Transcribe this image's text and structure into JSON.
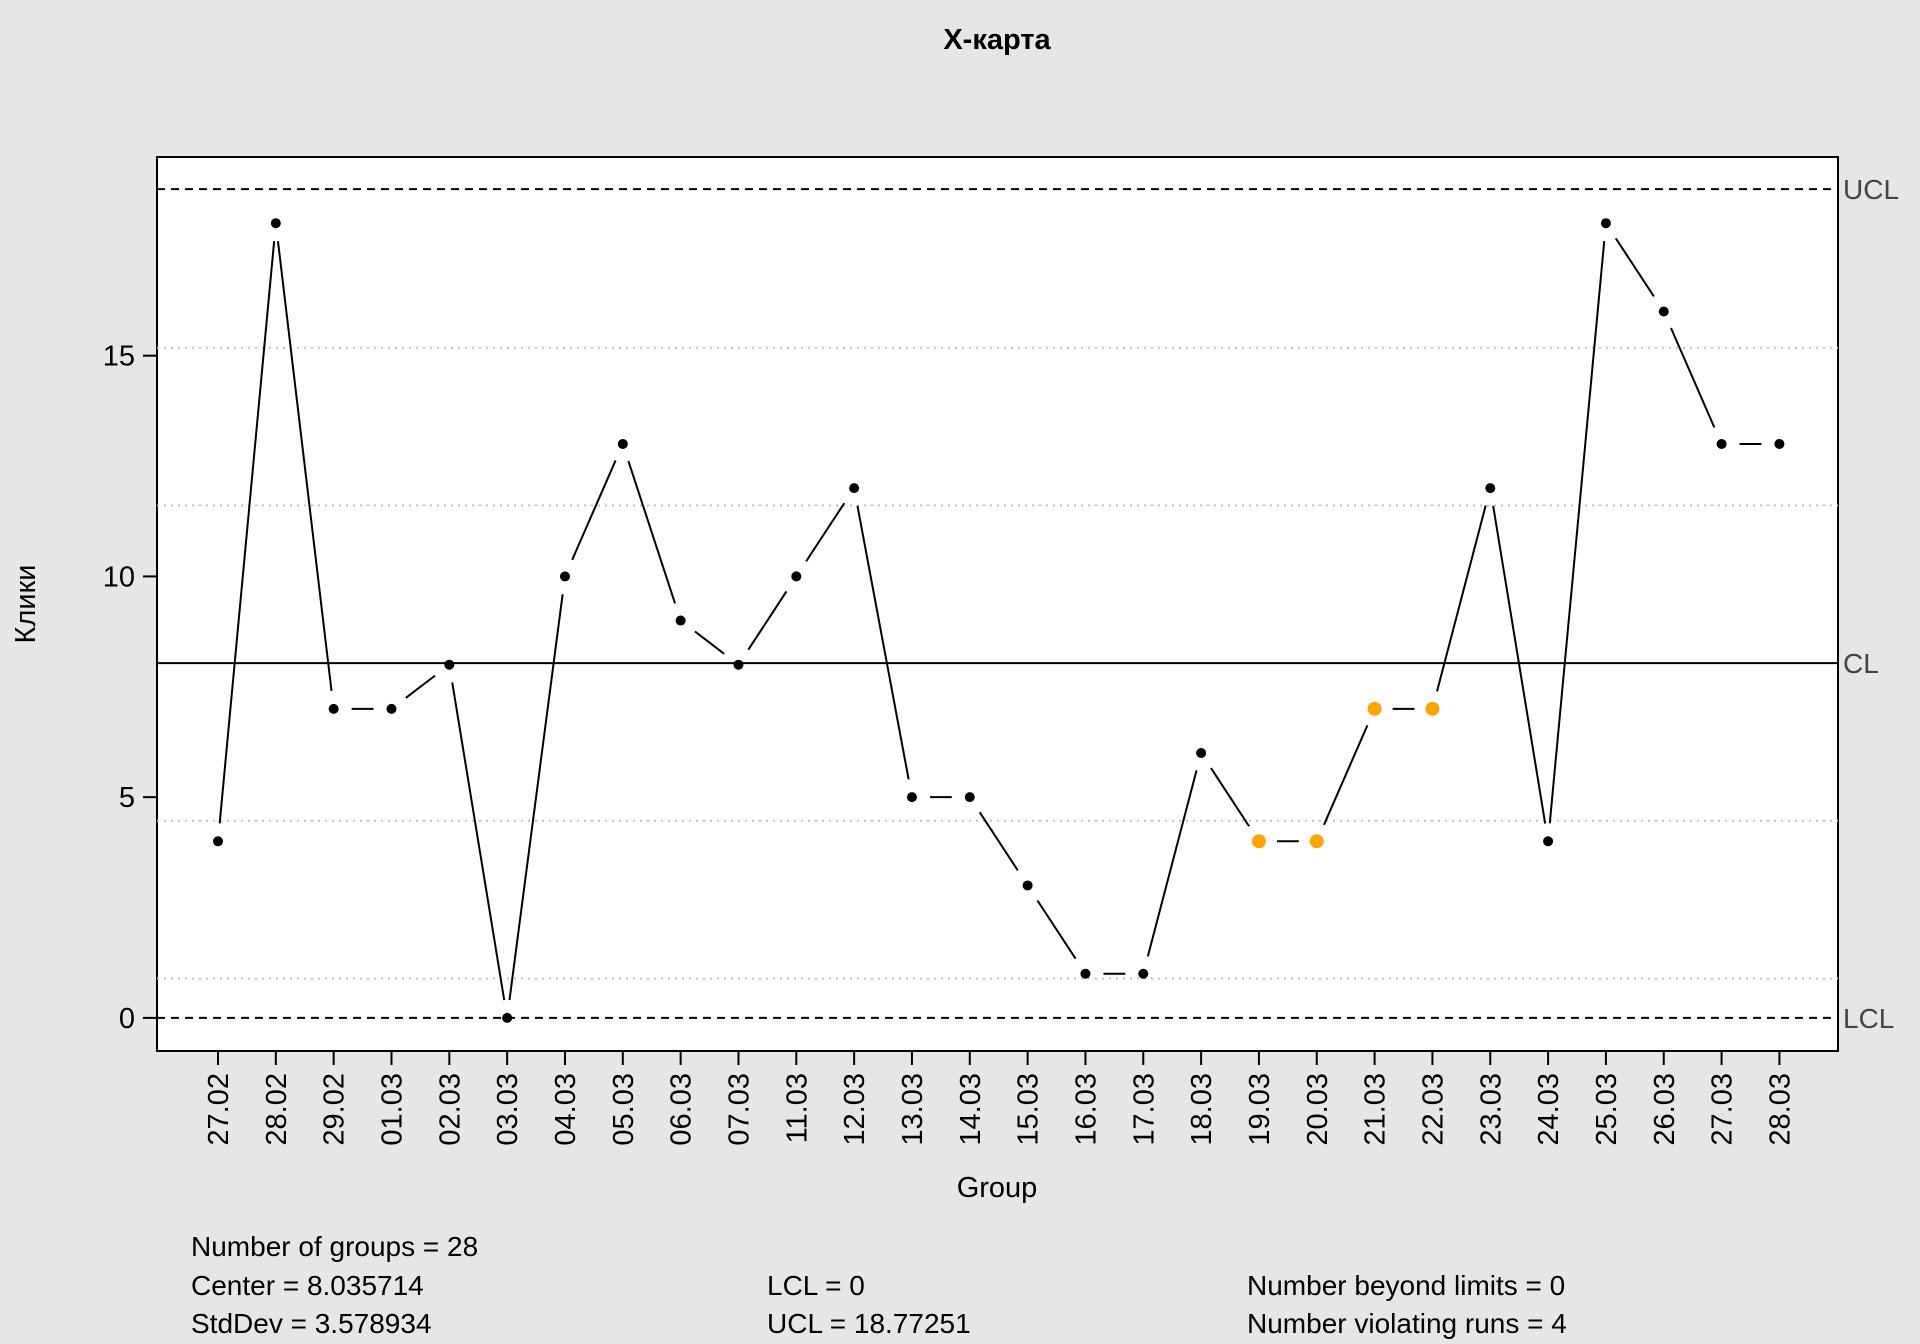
{
  "chart_data": {
    "type": "line",
    "title": "X-карта",
    "xlabel": "Group",
    "ylabel": "Клики",
    "categories": [
      "27.02",
      "28.02",
      "29.02",
      "01.03",
      "02.03",
      "03.03",
      "04.03",
      "05.03",
      "06.03",
      "07.03",
      "11.03",
      "12.03",
      "13.03",
      "14.03",
      "15.03",
      "16.03",
      "17.03",
      "18.03",
      "19.03",
      "20.03",
      "21.03",
      "22.03",
      "23.03",
      "24.03",
      "25.03",
      "26.03",
      "27.03",
      "28.03"
    ],
    "values": [
      4,
      18,
      7,
      7,
      8,
      0,
      10,
      13,
      9,
      8,
      10,
      12,
      5,
      5,
      3,
      1,
      1,
      6,
      4,
      4,
      7,
      7,
      12,
      4,
      18,
      16,
      13,
      13
    ],
    "violating_runs_indices": [
      18,
      19,
      20,
      21
    ],
    "ylim": [
      -0.75,
      19.5
    ],
    "yticks": [
      0,
      5,
      10,
      15
    ],
    "center": 8.035714,
    "lcl": 0,
    "ucl": 18.77251,
    "sigma_lines": [
      0.8923,
      4.464,
      11.6074,
      15.1791
    ],
    "limit_labels": {
      "ucl": "UCL",
      "cl": "CL",
      "lcl": "LCL"
    },
    "colors": {
      "point": "#000000",
      "violation": "#FFA500",
      "line": "#000000",
      "grid": "#c0c0c0"
    }
  },
  "stats": {
    "groups": "Number of groups = 28",
    "center": "Center = 8.035714",
    "stddev": "StdDev = 3.578934",
    "lcl": "LCL = 0",
    "ucl": "UCL = 18.77251",
    "beyond": "Number beyond limits = 0",
    "runs": "Number violating runs = 4"
  }
}
